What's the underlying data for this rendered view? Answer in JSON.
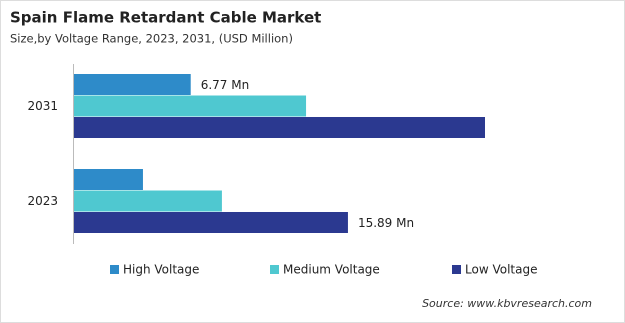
{
  "chart_data": {
    "type": "bar",
    "orientation": "horizontal",
    "title": "Spain Flame Retardant Cable Market",
    "subtitle": "Size,by Voltage Range, 2023, 2031, (USD Million)",
    "source": "Source: www.kbvresearch.com",
    "categories": [
      "2031",
      "2023"
    ],
    "series": [
      {
        "name": "High Voltage",
        "color": "#2e8bc9",
        "values": [
          6.77,
          4.0
        ],
        "value_labels": [
          "6.77 Mn",
          null
        ]
      },
      {
        "name": "Medium Voltage",
        "color": "#4fc8d0",
        "values": [
          13.46,
          8.58
        ]
      },
      {
        "name": "Low Voltage",
        "color": "#2b3990",
        "values": [
          23.84,
          15.89
        ],
        "value_labels": [
          null,
          "15.89 Mn"
        ]
      }
    ],
    "legend": "bottom"
  }
}
